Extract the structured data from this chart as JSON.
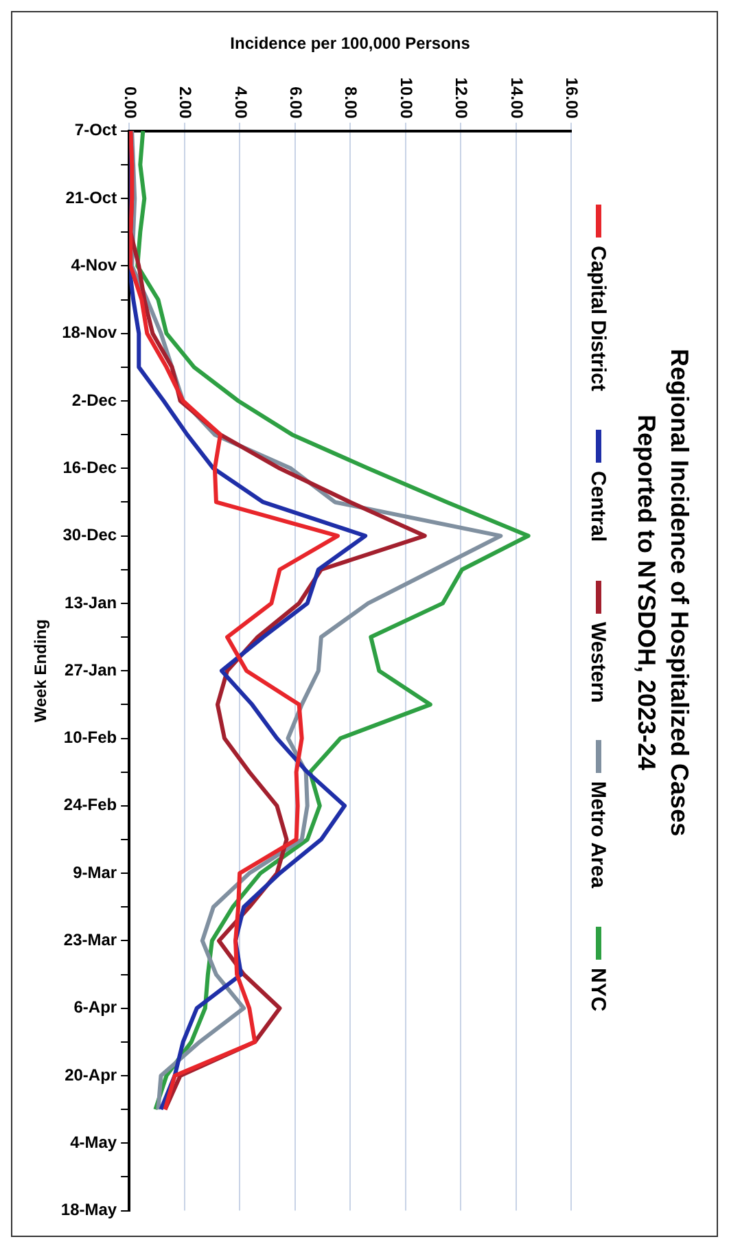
{
  "chart_data": {
    "type": "line",
    "orientation": "horizontal",
    "title": "Regional Incidence of Hospitalized Cases\nReported to NYSDOH, 2023-24",
    "ylabel": "Week Ending",
    "xlabel": "Incidence per 100,000 Persons",
    "categories": [
      "7-Oct",
      null,
      "21-Oct",
      null,
      "4-Nov",
      null,
      "18-Nov",
      null,
      "2-Dec",
      null,
      "16-Dec",
      null,
      "30-Dec",
      null,
      "13-Jan",
      null,
      "27-Jan",
      null,
      "10-Feb",
      null,
      "24-Feb",
      null,
      "9-Mar",
      null,
      "23-Mar",
      null,
      "6-Apr",
      null,
      "20-Apr",
      null,
      "4-May",
      null,
      "18-May"
    ],
    "series": [
      {
        "name": "Capital District",
        "color": "#e8262b",
        "values": [
          0.05,
          0.1,
          0.1,
          0.05,
          0.05,
          0.45,
          0.65,
          1.35,
          1.95,
          3.3,
          3.1,
          3.15,
          7.55,
          5.45,
          5.15,
          3.55,
          4.25,
          6.15,
          6.25,
          6.05,
          6.1,
          6.05,
          4.0,
          3.95,
          3.85,
          3.9,
          4.35,
          4.55,
          1.65,
          1.3,
          null,
          null,
          null
        ]
      },
      {
        "name": "Central",
        "color": "#1f2fa8",
        "values": [
          0.0,
          0.05,
          0.05,
          0.0,
          0.0,
          0.15,
          0.35,
          0.35,
          1.25,
          2.1,
          3.05,
          4.85,
          8.55,
          6.85,
          6.45,
          4.85,
          3.35,
          4.45,
          5.35,
          6.45,
          7.8,
          6.95,
          5.45,
          4.15,
          3.85,
          4.05,
          2.45,
          1.95,
          1.65,
          1.15,
          null,
          null,
          null
        ]
      },
      {
        "name": "Western",
        "color": "#a3202e",
        "values": [
          0.05,
          0.1,
          0.1,
          0.05,
          0.35,
          0.55,
          0.85,
          1.55,
          1.85,
          3.3,
          5.45,
          8.0,
          10.7,
          6.95,
          6.15,
          4.65,
          3.55,
          3.2,
          3.45,
          4.35,
          5.35,
          5.7,
          5.35,
          4.35,
          3.25,
          4.15,
          5.45,
          4.55,
          1.85,
          1.3,
          null,
          null,
          null
        ]
      },
      {
        "name": "Metro Area",
        "color": "#8090a0",
        "values": [
          0.1,
          0.15,
          0.2,
          0.15,
          0.1,
          0.65,
          1.15,
          1.55,
          1.95,
          3.1,
          5.85,
          7.45,
          13.45,
          11.05,
          8.65,
          6.95,
          6.85,
          6.25,
          5.75,
          6.4,
          6.45,
          6.25,
          4.35,
          3.05,
          2.65,
          3.15,
          4.15,
          2.55,
          1.15,
          1.05,
          null,
          null,
          null
        ]
      },
      {
        "name": "NYC",
        "color": "#2ea043",
        "values": [
          0.5,
          0.4,
          0.55,
          0.4,
          0.3,
          1.05,
          1.35,
          2.35,
          3.95,
          5.9,
          8.65,
          11.5,
          14.45,
          12.05,
          11.35,
          8.75,
          9.05,
          10.9,
          7.65,
          6.55,
          6.9,
          6.45,
          4.75,
          3.75,
          3.0,
          2.85,
          2.75,
          2.25,
          1.35,
          0.95,
          null,
          null,
          null
        ]
      }
    ],
    "xlim": [
      0,
      16
    ],
    "xticks": [
      {
        "value": 0,
        "label": "0.00"
      },
      {
        "value": 2,
        "label": "2.00"
      },
      {
        "value": 4,
        "label": "4.00"
      },
      {
        "value": 6,
        "label": "6.00"
      },
      {
        "value": 8,
        "label": "8.00"
      },
      {
        "value": 10,
        "label": "10.00"
      },
      {
        "value": 12,
        "label": "12.00"
      },
      {
        "value": 14,
        "label": "14.00"
      },
      {
        "value": 16,
        "label": "16.00"
      }
    ],
    "grid": "x",
    "legend": "right",
    "marker": "none",
    "line_style": "solid"
  }
}
